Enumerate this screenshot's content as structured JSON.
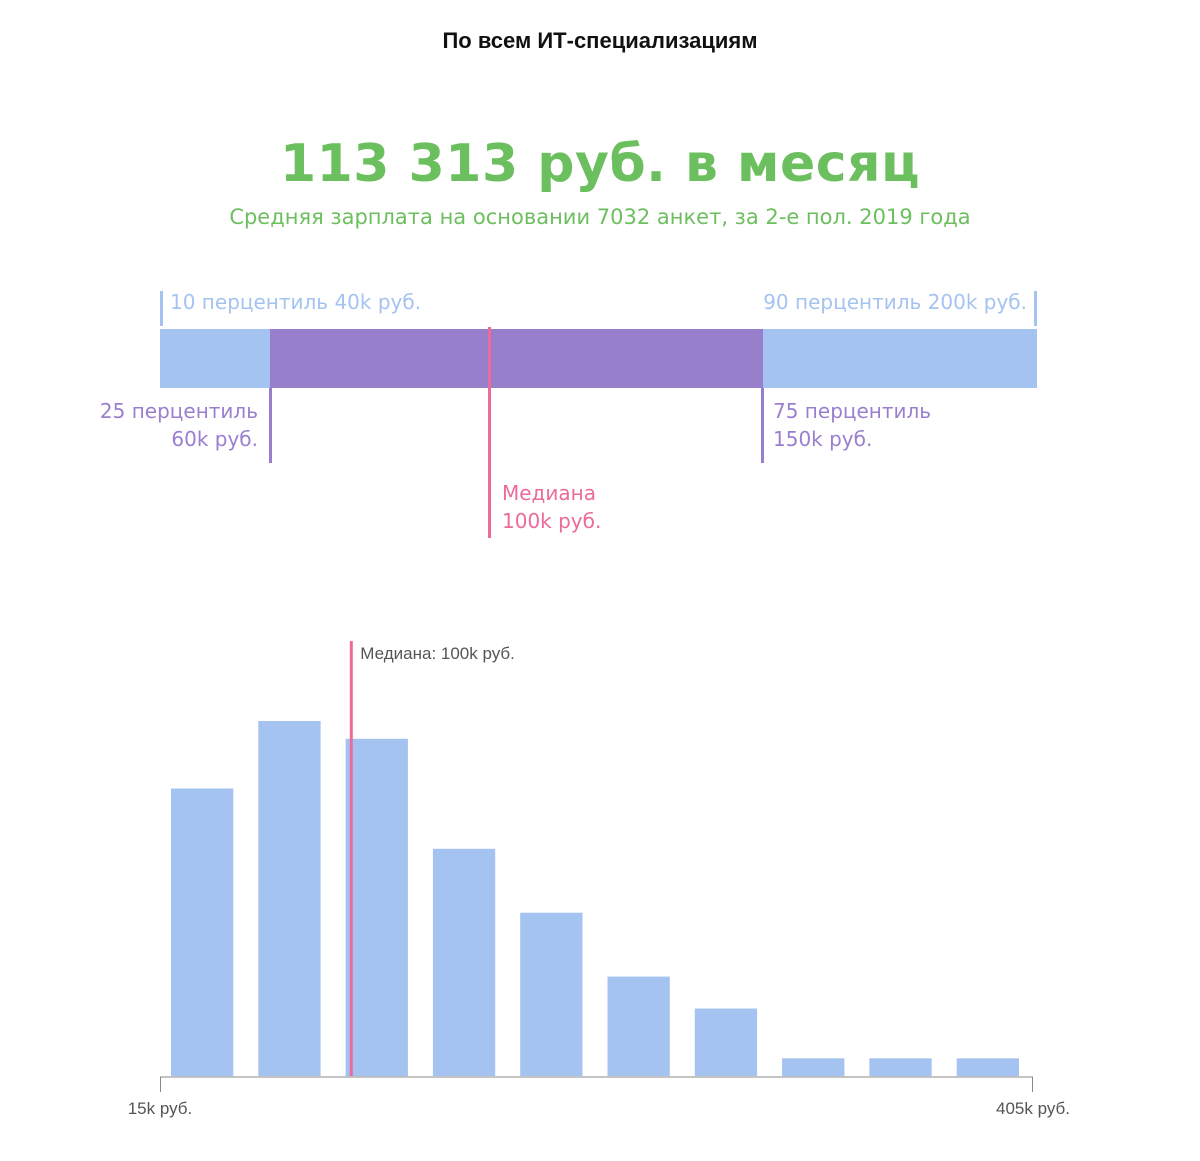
{
  "header": {
    "title": "По всем ИТ-специализациям",
    "average": "113 313 руб. в месяц",
    "caption": "Средняя зарплата на основании 7032 анкет, за 2-е пол. 2019 года"
  },
  "percentiles": {
    "p10": {
      "label": "10 перцентиль 40k руб.",
      "value": 40
    },
    "p90": {
      "label": "90 перцентиль 200k руб.",
      "value": 200
    },
    "p25": {
      "line1": "25 перцентиль",
      "line2": "60k руб.",
      "value": 60
    },
    "p75": {
      "line1": "75 перцентиль",
      "line2": "150k руб.",
      "value": 150
    },
    "median": {
      "line1": "Медиана",
      "line2": "100k руб.",
      "value": 100
    }
  },
  "colors": {
    "green": "#6cbf5e",
    "blue": "#a4c3f0",
    "purple": "#987fcc",
    "pink": "#ec6b9a"
  },
  "chart_data": {
    "type": "bar",
    "title": "",
    "xlabel": "",
    "ylabel": "",
    "x_range_labels": [
      "15k руб.",
      "405k руб."
    ],
    "xlim": [
      15,
      405
    ],
    "median_label": "Медиана: 100k руб.",
    "median_value": 100,
    "bins": [
      {
        "from": 15,
        "to": 54
      },
      {
        "from": 54,
        "to": 93
      },
      {
        "from": 93,
        "to": 132
      },
      {
        "from": 132,
        "to": 171
      },
      {
        "from": 171,
        "to": 210
      },
      {
        "from": 210,
        "to": 249
      },
      {
        "from": 249,
        "to": 288
      },
      {
        "from": 288,
        "to": 327
      },
      {
        "from": 327,
        "to": 366
      },
      {
        "from": 366,
        "to": 405
      }
    ],
    "values": [
      0.81,
      1.0,
      0.95,
      0.64,
      0.46,
      0.28,
      0.19,
      0.05,
      0.05,
      0.05
    ],
    "y_scale": "relative frequency",
    "grid": false
  }
}
